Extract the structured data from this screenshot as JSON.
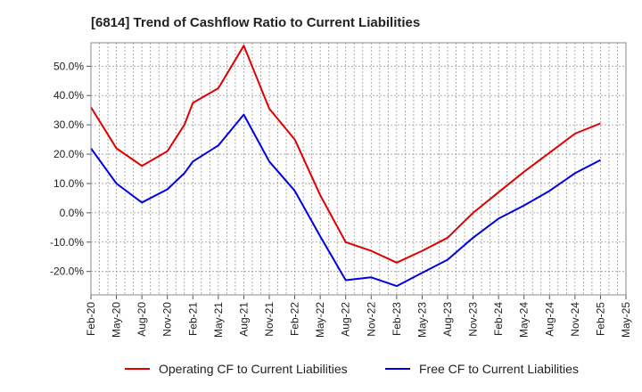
{
  "chart_data": {
    "type": "line",
    "title": "[6814]  Trend of Cashflow Ratio to Current Liabilities",
    "xlabel": "",
    "ylabel": "",
    "x": [
      "Feb-20",
      "Mar-20",
      "Apr-20",
      "May-20",
      "Jun-20",
      "Jul-20",
      "Aug-20",
      "Sep-20",
      "Oct-20",
      "Nov-20",
      "Dec-20",
      "Jan-21",
      "Feb-21",
      "Mar-21",
      "Apr-21",
      "May-21",
      "Jun-21",
      "Jul-21",
      "Aug-21",
      "Sep-21",
      "Oct-21",
      "Nov-21",
      "Dec-21",
      "Jan-22",
      "Feb-22",
      "Mar-22",
      "Apr-22",
      "May-22",
      "Jun-22",
      "Jul-22",
      "Aug-22",
      "Sep-22",
      "Oct-22",
      "Nov-22",
      "Dec-22",
      "Jan-23",
      "Feb-23",
      "Mar-23",
      "Apr-23",
      "May-23",
      "Jun-23",
      "Jul-23",
      "Aug-23",
      "Sep-23",
      "Oct-23",
      "Nov-23",
      "Dec-23",
      "Jan-24",
      "Feb-24",
      "Mar-24",
      "Apr-24",
      "May-24",
      "Jun-24",
      "Jul-24",
      "Aug-24",
      "Sep-24",
      "Oct-24",
      "Nov-24",
      "Dec-24",
      "Jan-25",
      "Feb-25",
      "Mar-25",
      "Apr-25",
      "May-25"
    ],
    "x_tick_labels": [
      "Feb-20",
      "May-20",
      "Aug-20",
      "Nov-20",
      "Feb-21",
      "May-21",
      "Aug-21",
      "Nov-21",
      "Feb-22",
      "May-22",
      "Aug-22",
      "Nov-22",
      "Feb-23",
      "May-23",
      "Aug-23",
      "Nov-23",
      "Feb-24",
      "May-24",
      "Aug-24",
      "Nov-24",
      "Feb-25",
      "May-25"
    ],
    "y_ticks": [
      -20,
      -10,
      0,
      10,
      20,
      30,
      40,
      50
    ],
    "y_tick_labels": [
      "-20.0%",
      "-10.0%",
      "0.0%",
      "10.0%",
      "20.0%",
      "30.0%",
      "40.0%",
      "50.0%"
    ],
    "ylim": [
      -28,
      58
    ],
    "grid": true,
    "legend_position": "bottom",
    "series": [
      {
        "name": "Operating CF to Current Liabilities",
        "color": "#e00000",
        "x": [
          "Feb-20",
          "May-20",
          "Aug-20",
          "Nov-20",
          "Jan-21",
          "Feb-21",
          "May-21",
          "Aug-21",
          "Nov-21",
          "Feb-22",
          "May-22",
          "Aug-22",
          "Nov-22",
          "Feb-23",
          "May-23",
          "Aug-23",
          "Nov-23",
          "Feb-24",
          "May-24",
          "Aug-24",
          "Nov-24",
          "Feb-25"
        ],
        "values": [
          36.0,
          22.0,
          16.0,
          21.0,
          30.0,
          37.5,
          42.5,
          57.0,
          35.5,
          25.0,
          6.0,
          -10.0,
          -13.0,
          -17.0,
          -13.0,
          -8.5,
          0.0,
          7.0,
          14.0,
          20.5,
          27.0,
          30.5
        ]
      },
      {
        "name": "Free CF to Current Liabilities",
        "color": "#0000e0",
        "x": [
          "Feb-20",
          "May-20",
          "Aug-20",
          "Nov-20",
          "Jan-21",
          "Feb-21",
          "May-21",
          "Aug-21",
          "Nov-21",
          "Feb-22",
          "May-22",
          "Aug-22",
          "Nov-22",
          "Feb-23",
          "May-23",
          "Aug-23",
          "Nov-23",
          "Feb-24",
          "May-24",
          "Aug-24",
          "Nov-24",
          "Feb-25"
        ],
        "values": [
          22.0,
          10.0,
          3.5,
          8.0,
          13.5,
          17.5,
          23.0,
          33.5,
          17.5,
          7.5,
          -8.0,
          -23.0,
          -22.0,
          -25.0,
          -20.5,
          -16.0,
          -8.5,
          -2.0,
          2.5,
          7.5,
          13.5,
          18.0
        ]
      }
    ]
  }
}
